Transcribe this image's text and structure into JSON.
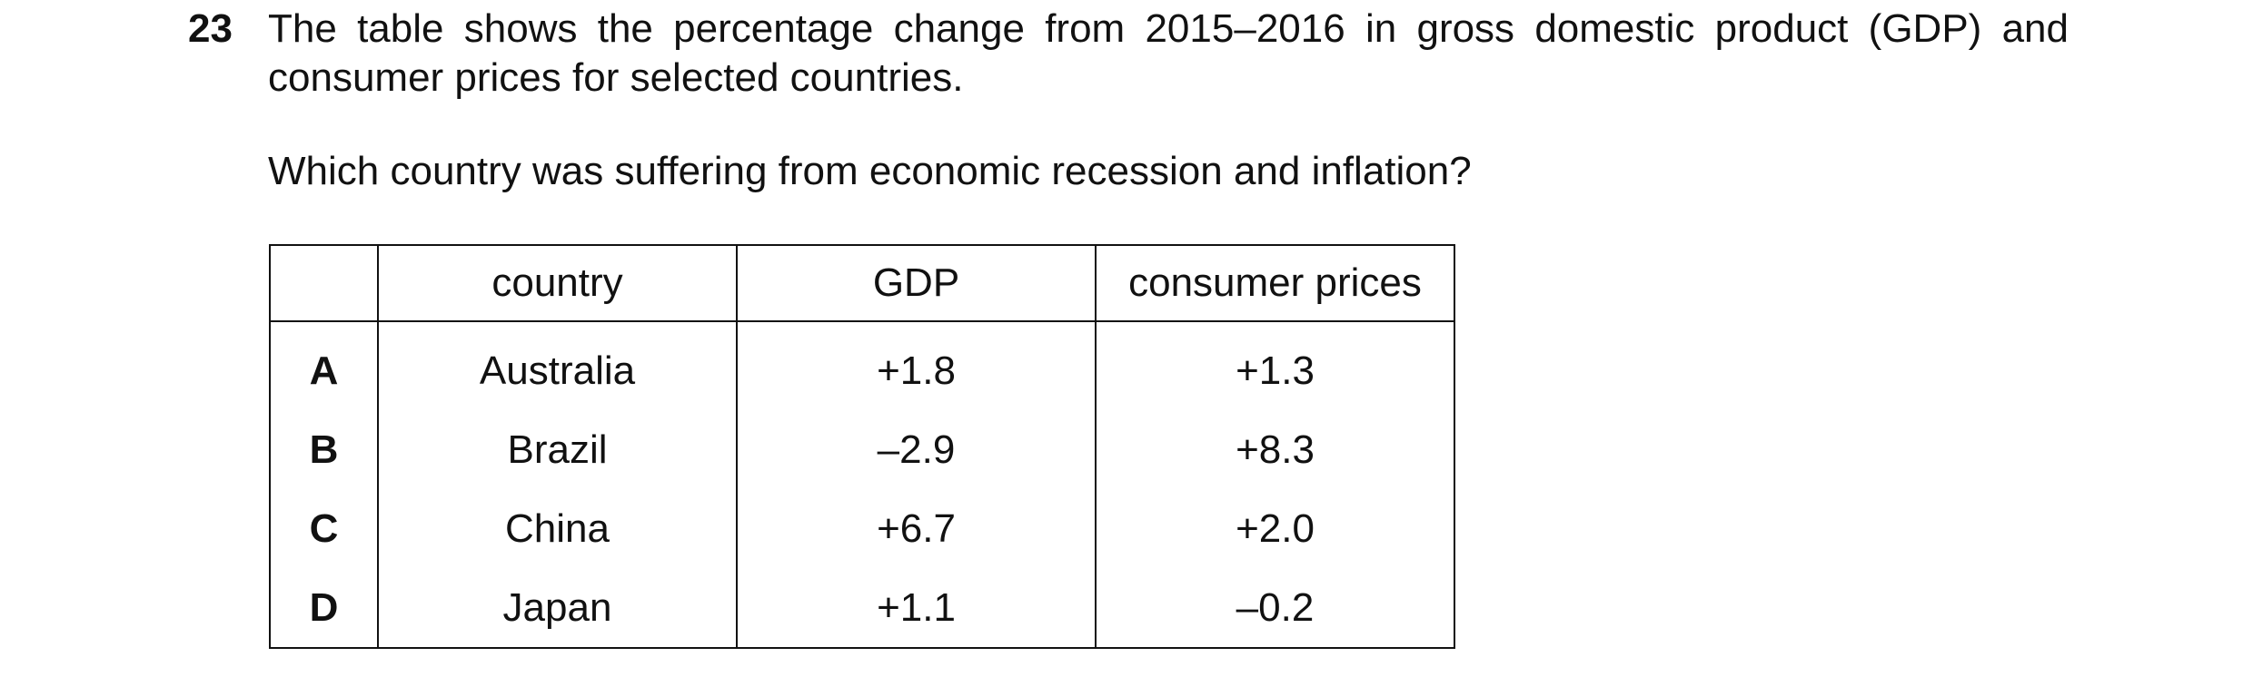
{
  "question": {
    "number": "23",
    "stem": "The table shows the percentage change from 2015–2016 in gross domestic product (GDP) and consumer prices for selected countries.",
    "prompt": "Which country was suffering from economic recession and inflation?"
  },
  "table": {
    "headers": [
      "",
      "country",
      "GDP",
      "consumer prices"
    ],
    "rows": [
      {
        "option": "A",
        "country": "Australia",
        "gdp": "+1.8",
        "consumer_prices": "+1.3"
      },
      {
        "option": "B",
        "country": "Brazil",
        "gdp": "–2.9",
        "consumer_prices": "+8.3"
      },
      {
        "option": "C",
        "country": "China",
        "gdp": "+6.7",
        "consumer_prices": "+2.0"
      },
      {
        "option": "D",
        "country": "Japan",
        "gdp": "+1.1",
        "consumer_prices": "–0.2"
      }
    ]
  }
}
